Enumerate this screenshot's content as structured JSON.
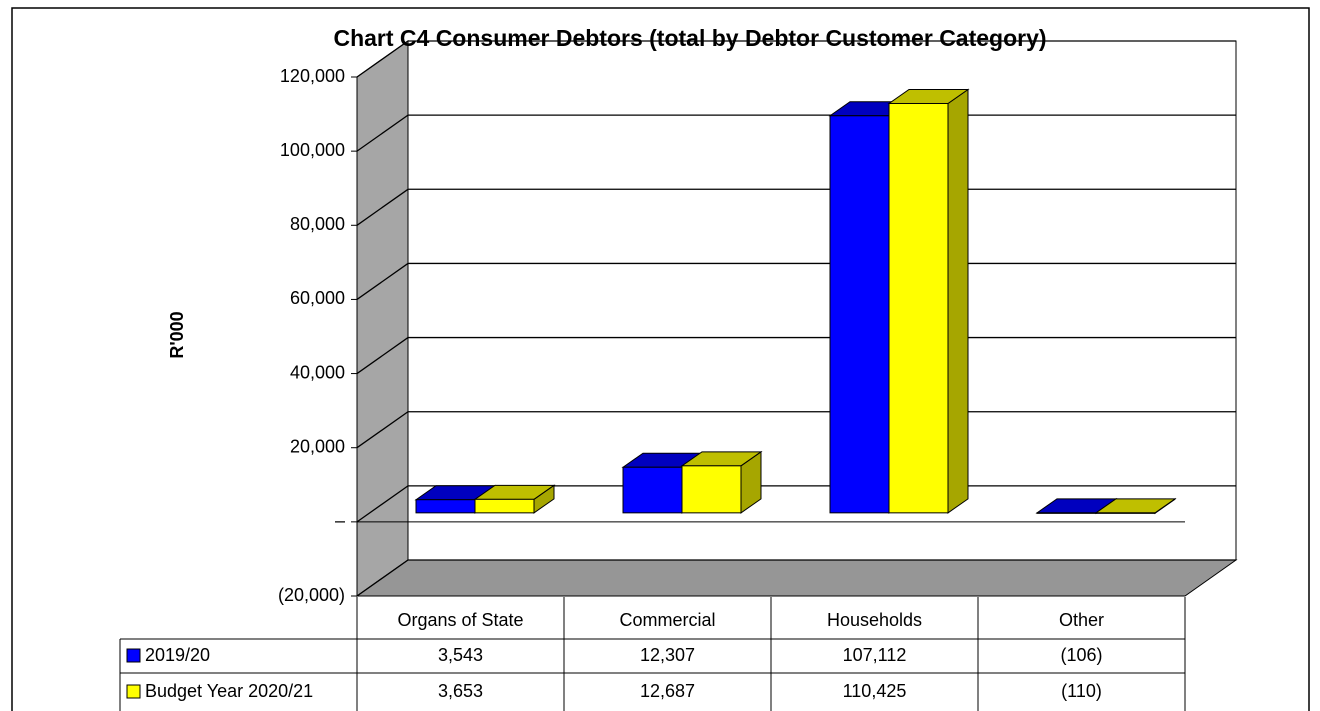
{
  "chart_data": {
    "type": "bar3d",
    "title": "Chart C4 Consumer Debtors (total by Debtor Customer Category)",
    "y_label": "R'000",
    "categories": [
      "Organs of State",
      "Commercial",
      "Households",
      "Other"
    ],
    "series": [
      {
        "name": "2019/20",
        "color": "#0000ff",
        "values": [
          3543,
          12307,
          107112,
          -106
        ],
        "value_labels": [
          "3,543",
          "12,307",
          "107,112",
          "(106)"
        ]
      },
      {
        "name": "Budget Year 2020/21",
        "color": "#ffff00",
        "values": [
          3653,
          12687,
          110425,
          -110
        ],
        "value_labels": [
          "3,653",
          "12,687",
          "110,425",
          "(110)"
        ]
      }
    ],
    "ylim": [
      -20000,
      120000
    ],
    "yticks": [
      {
        "value": -20000,
        "label": "(20,000)"
      },
      {
        "value": 0,
        "label": "–"
      },
      {
        "value": 20000,
        "label": "20,000"
      },
      {
        "value": 40000,
        "label": "40,000"
      },
      {
        "value": 60000,
        "label": "60,000"
      },
      {
        "value": 80000,
        "label": "80,000"
      },
      {
        "value": 100000,
        "label": "100,000"
      },
      {
        "value": 120000,
        "label": "120,000"
      }
    ],
    "grid": true
  }
}
